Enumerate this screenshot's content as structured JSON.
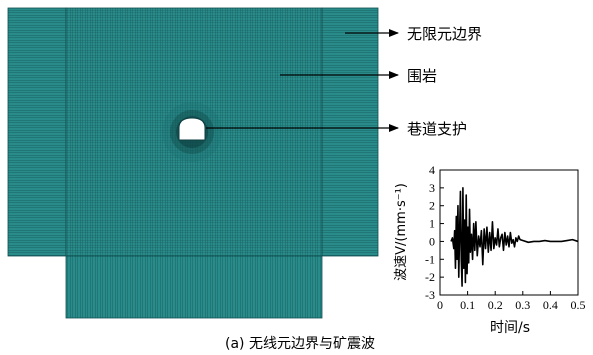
{
  "mesh": {
    "labels": {
      "infinite_boundary": "无限元边界",
      "surrounding_rock": "围岩",
      "roadway_support": "巷道支护"
    },
    "colors": {
      "mesh_fill": "#2a8c8a",
      "mesh_line": "#0f4f50",
      "hole": "#ffffff"
    }
  },
  "chart_data": {
    "type": "line",
    "xlabel": "时间/s",
    "ylabel": "波速V/(mm·s⁻¹)",
    "xlim": [
      0,
      0.5
    ],
    "ylim": [
      -3,
      4
    ],
    "xticks": [
      "0",
      "0.1",
      "0.2",
      "0.3",
      "0.4",
      "0.5"
    ],
    "yticks": [
      "-3",
      "-2",
      "-1",
      "0",
      "1",
      "2",
      "3",
      "4"
    ],
    "grid": false,
    "series": [
      {
        "x": [
          0.04,
          0.045,
          0.05,
          0.053,
          0.056,
          0.059,
          0.062,
          0.065,
          0.068,
          0.071,
          0.074,
          0.077,
          0.08,
          0.083,
          0.086,
          0.089,
          0.092,
          0.095,
          0.098,
          0.101,
          0.104,
          0.107,
          0.11,
          0.114,
          0.118,
          0.122,
          0.126,
          0.13,
          0.135,
          0.14,
          0.145,
          0.15,
          0.155,
          0.16,
          0.165,
          0.17,
          0.175,
          0.18,
          0.185,
          0.19,
          0.195,
          0.2,
          0.205,
          0.21,
          0.215,
          0.22,
          0.225,
          0.23,
          0.235,
          0.24,
          0.245,
          0.25,
          0.255,
          0.26,
          0.265,
          0.27,
          0.275,
          0.28,
          0.285,
          0.29,
          0.3,
          0.32,
          0.34,
          0.36,
          0.38,
          0.4,
          0.42,
          0.44,
          0.46,
          0.48,
          0.5
        ],
        "y": [
          0.0,
          0.2,
          -0.4,
          0.6,
          -1.5,
          1.4,
          -1.0,
          2.0,
          -2.0,
          0.5,
          2.8,
          -1.0,
          -2.5,
          3.0,
          -1.5,
          1.2,
          -2.3,
          2.6,
          -1.8,
          0.8,
          -1.2,
          1.8,
          -0.6,
          0.4,
          -1.0,
          1.0,
          -0.5,
          1.1,
          -0.8,
          0.3,
          -0.3,
          0.6,
          -1.3,
          0.7,
          -0.4,
          0.8,
          -0.6,
          0.5,
          -0.5,
          1.1,
          -0.4,
          0.2,
          -0.2,
          0.7,
          -0.3,
          0.2,
          0.4,
          -0.5,
          0.5,
          -0.2,
          0.3,
          -0.3,
          0.5,
          -0.1,
          0.1,
          -0.3,
          0.2,
          0.0,
          0.3,
          0.1,
          0.05,
          -0.05,
          0.0,
          0.0,
          0.05,
          0.0,
          0.0,
          0.0,
          0.05,
          0.1,
          0.0
        ]
      }
    ]
  },
  "caption": "(a) 无线元边界与矿震波"
}
